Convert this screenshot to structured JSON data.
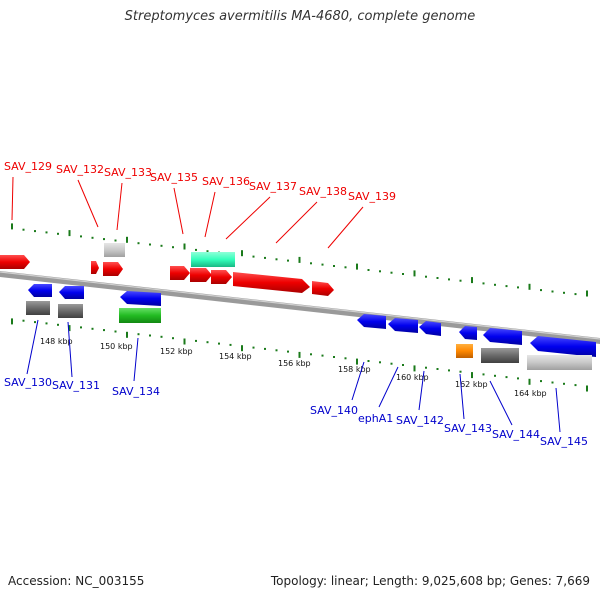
{
  "title": "Streptomyces avermitilis MA-4680, complete genome",
  "footer": {
    "accession": "Accession: NC_003155",
    "summary": "Topology: linear; Length: 9,025,608 bp; Genes: 7,669"
  },
  "colors": {
    "forward_label": "#ee0000",
    "reverse_label": "#0000cc",
    "backbone": "#888888",
    "tick": "#1a7a1a"
  },
  "kbp_ticks": [
    "148 kbp",
    "150 kbp",
    "152 kbp",
    "154 kbp",
    "156 kbp",
    "158 kbp",
    "160 kbp",
    "162 kbp",
    "164 kbp"
  ],
  "forward_genes": [
    "SAV_129",
    "SAV_132",
    "SAV_133",
    "SAV_135",
    "SAV_136",
    "SAV_137",
    "SAV_138",
    "SAV_139"
  ],
  "reverse_genes": [
    "SAV_130",
    "SAV_131",
    "SAV_134",
    "SAV_140",
    "ephA1",
    "SAV_142",
    "SAV_143",
    "SAV_144",
    "SAV_145"
  ]
}
